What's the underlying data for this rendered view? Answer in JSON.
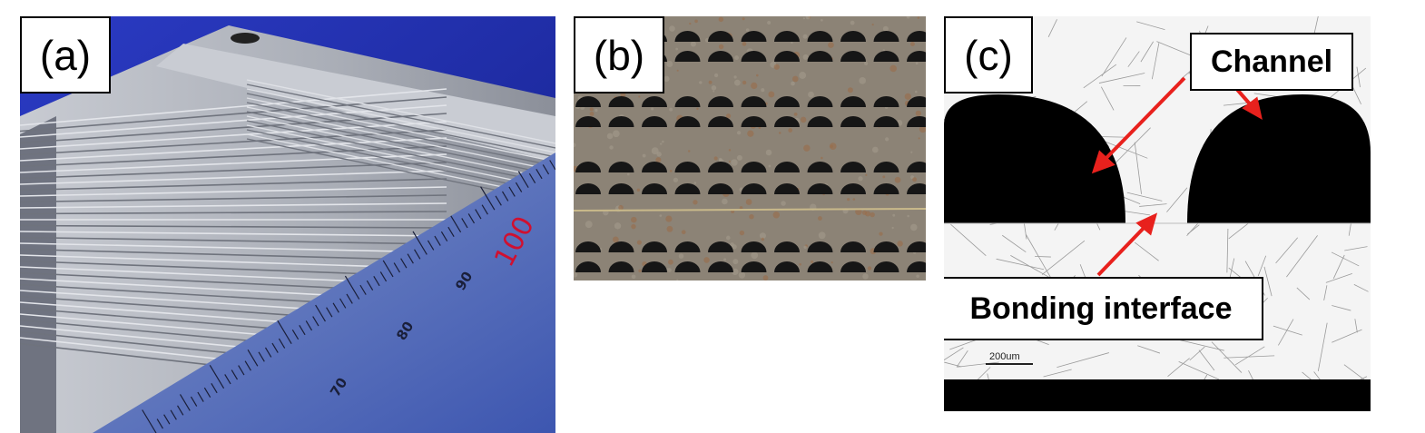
{
  "panels": {
    "a": {
      "label": "(a)",
      "ruler_marks": [
        "70",
        "80",
        "90",
        "100"
      ]
    },
    "b": {
      "label": "(b)"
    },
    "c": {
      "label": "(c)",
      "channel_label": "Channel",
      "bonding_label": "Bonding interface",
      "scale_bar": "200um"
    }
  },
  "colors": {
    "background_blue": "#1e2aa8",
    "metal_gray": "#b9bcc4",
    "arrow_red": "#e8211d",
    "channel_black": "#000000"
  }
}
